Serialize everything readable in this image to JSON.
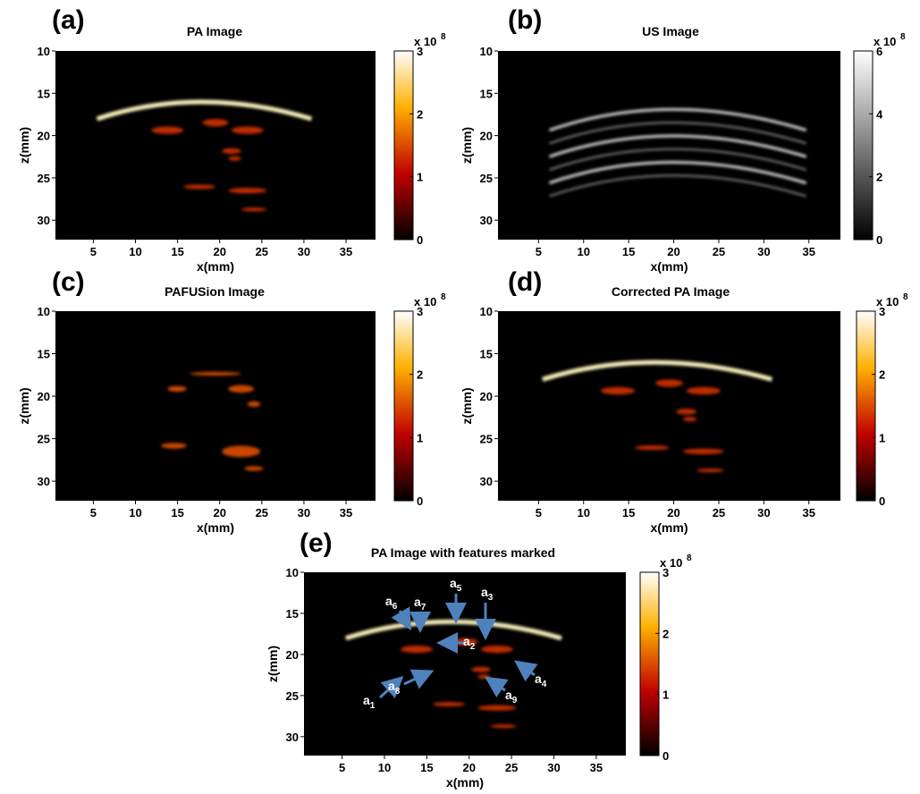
{
  "panels": [
    {
      "label": "(a)",
      "title": "PA Image",
      "x_label": "x(mm)",
      "y_label": "z(mm)",
      "xlim": [
        0.5,
        38.5
      ],
      "ylim": [
        10,
        32.3
      ],
      "xticks": [
        5,
        10,
        15,
        20,
        25,
        30,
        35
      ],
      "yticks": [
        10,
        15,
        20,
        25,
        30
      ],
      "colormap": "hot",
      "clim": [
        0,
        3
      ],
      "cticks": [
        0,
        1,
        2,
        3
      ],
      "cscale": "x 10",
      "cscale_exp": "8",
      "features": []
    },
    {
      "label": "(b)",
      "title": "US Image",
      "x_label": "x(mm)",
      "y_label": "z(mm)",
      "xlim": [
        0.5,
        38.5
      ],
      "ylim": [
        10,
        32.3
      ],
      "xticks": [
        5,
        10,
        15,
        20,
        25,
        30,
        35
      ],
      "yticks": [
        10,
        15,
        20,
        25,
        30
      ],
      "colormap": "gray",
      "clim": [
        0,
        6
      ],
      "cticks": [
        0,
        2,
        4,
        6
      ],
      "cscale": "x 10",
      "cscale_exp": "8",
      "features": []
    },
    {
      "label": "(c)",
      "title": "PAFUSion Image",
      "x_label": "x(mm)",
      "y_label": "z(mm)",
      "xlim": [
        0.5,
        38.5
      ],
      "ylim": [
        10,
        32.3
      ],
      "xticks": [
        5,
        10,
        15,
        20,
        25,
        30,
        35
      ],
      "yticks": [
        10,
        15,
        20,
        25,
        30
      ],
      "colormap": "hot",
      "clim": [
        0,
        3
      ],
      "cticks": [
        0,
        1,
        2,
        3
      ],
      "cscale": "x 10",
      "cscale_exp": "8",
      "features": []
    },
    {
      "label": "(d)",
      "title": "Corrected PA Image",
      "x_label": "x(mm)",
      "y_label": "z(mm)",
      "xlim": [
        0.5,
        38.5
      ],
      "ylim": [
        10,
        32.3
      ],
      "xticks": [
        5,
        10,
        15,
        20,
        25,
        30,
        35
      ],
      "yticks": [
        10,
        15,
        20,
        25,
        30
      ],
      "colormap": "hot",
      "clim": [
        0,
        3
      ],
      "cticks": [
        0,
        1,
        2,
        3
      ],
      "cscale": "x 10",
      "cscale_exp": "8",
      "features": []
    },
    {
      "label": "(e)",
      "title": "PA Image with features marked",
      "x_label": "x(mm)",
      "y_label": "z(mm)",
      "xlim": [
        0.5,
        38.5
      ],
      "ylim": [
        10,
        32.3
      ],
      "xticks": [
        5,
        10,
        15,
        20,
        25,
        30,
        35
      ],
      "yticks": [
        10,
        15,
        20,
        25,
        30
      ],
      "colormap": "hot",
      "clim": [
        0,
        3
      ],
      "cticks": [
        0,
        1,
        2,
        3
      ],
      "cscale": "x 10",
      "cscale_exp": "8",
      "features": [
        {
          "base": "a",
          "sub": "1"
        },
        {
          "base": "a",
          "sub": "2"
        },
        {
          "base": "a",
          "sub": "3"
        },
        {
          "base": "a",
          "sub": "4"
        },
        {
          "base": "a",
          "sub": "5"
        },
        {
          "base": "a",
          "sub": "6"
        },
        {
          "base": "a",
          "sub": "7"
        },
        {
          "base": "a",
          "sub": "8"
        },
        {
          "base": "a",
          "sub": "9"
        }
      ]
    }
  ]
}
